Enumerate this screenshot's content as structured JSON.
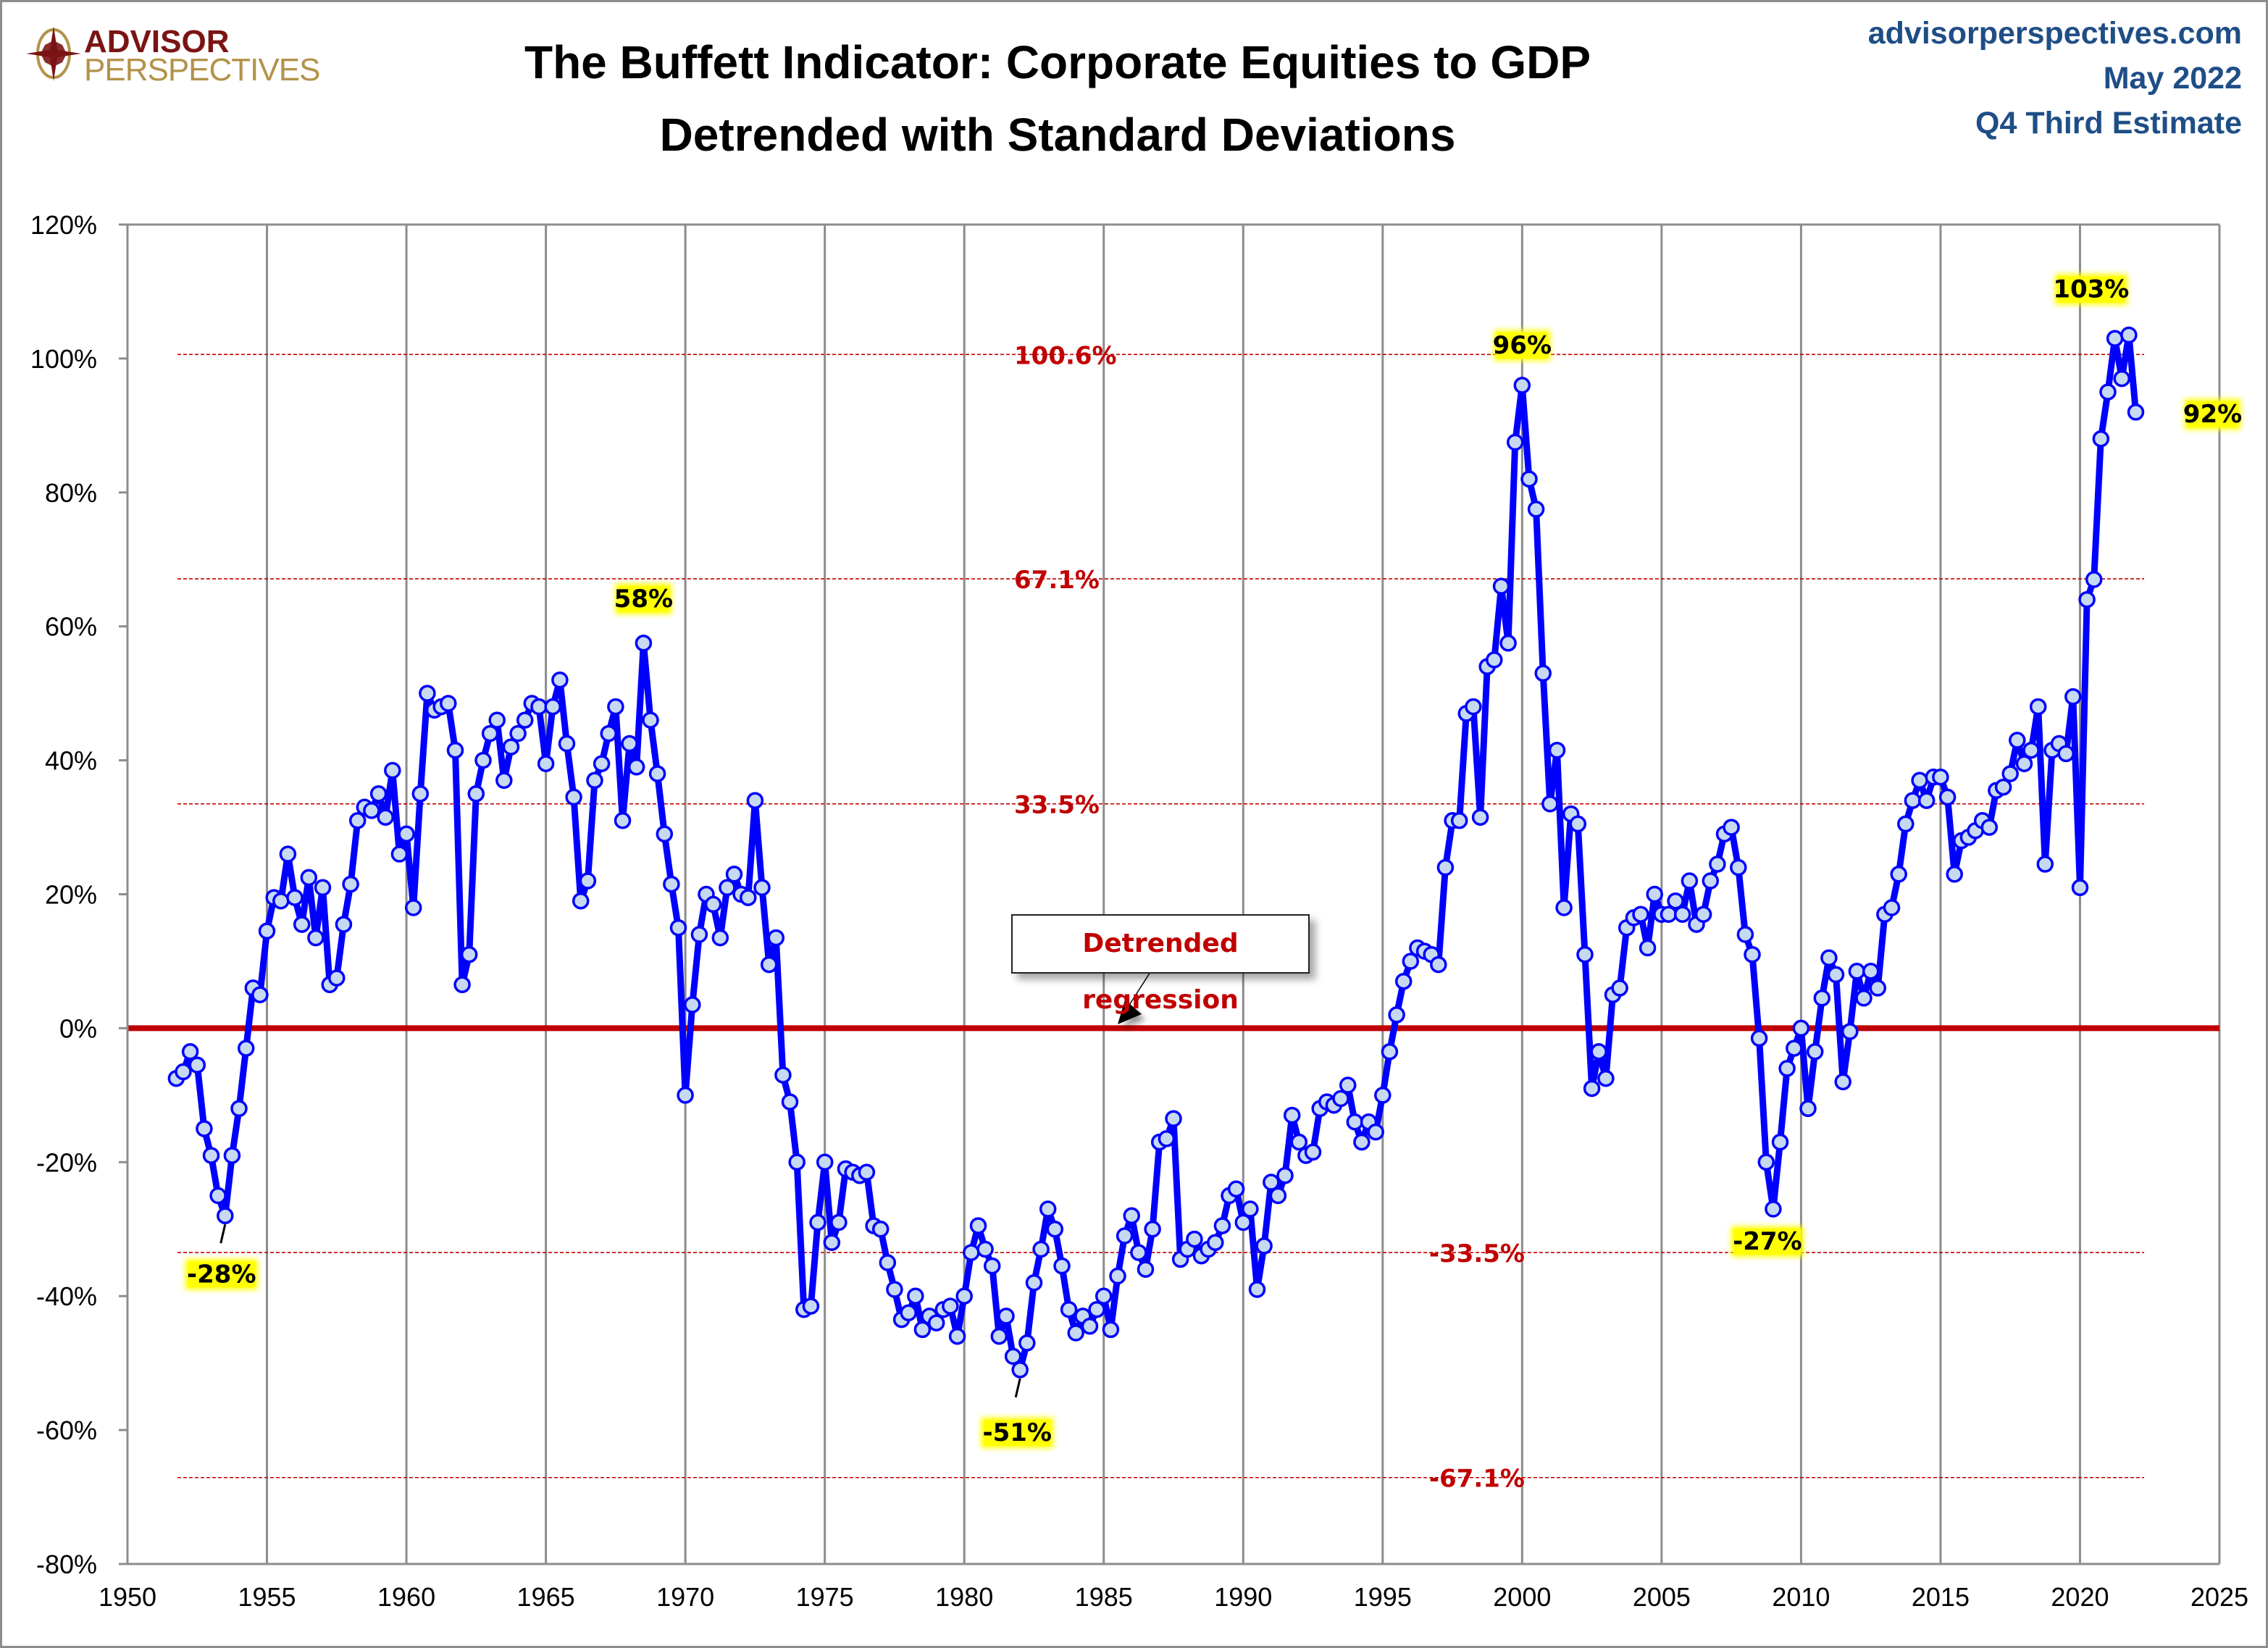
{
  "header": {
    "logo_top": "ADVISOR",
    "logo_bottom": "PERSPECTIVES",
    "title_line1": "The Buffett Indicator: Corporate Equities to GDP",
    "title_line2": "Detrended with Standard Deviations",
    "site": "advisorperspectives.com",
    "date": "May 2022",
    "estimate": "Q4 Third Estimate"
  },
  "colors": {
    "series_line": "#0000ff",
    "marker_fill": "#c6d9f1",
    "regression_line": "#c00000",
    "sd_line": "#c00000",
    "annotation_highlight": "#ffff00",
    "brand_dark": "#7a1414",
    "brand_gold": "#b3924a",
    "meta_text": "#1f4e86",
    "gridline": "#8c8c8c"
  },
  "callout": {
    "label": "Detrended regression"
  },
  "chart_data": {
    "type": "line",
    "title": "The Buffett Indicator: Corporate Equities to GDP — Detrended with Standard Deviations",
    "xlabel": "",
    "ylabel": "",
    "xlim": [
      1950,
      2025
    ],
    "ylim": [
      -80,
      120
    ],
    "x_ticks": [
      1950,
      1955,
      1960,
      1965,
      1970,
      1975,
      1980,
      1985,
      1990,
      1995,
      2000,
      2005,
      2010,
      2015,
      2020,
      2025
    ],
    "x_tick_labels": [
      "1950",
      "1955",
      "1960",
      "1965",
      "1970",
      "1975",
      "1980",
      "1985",
      "1990",
      "1995",
      "2000",
      "2005",
      "2010",
      "2015",
      "2020",
      "2025"
    ],
    "y_ticks": [
      120,
      100,
      80,
      60,
      40,
      20,
      0,
      -20,
      -40,
      -60,
      -80
    ],
    "y_tick_labels": [
      "120%",
      "100%",
      "80%",
      "60%",
      "40%",
      "20%",
      "0%",
      "-20%",
      "-40%",
      "-60%",
      "-80%"
    ],
    "grid": "vertical gridlines at x ticks",
    "legend": "none",
    "reference_lines": [
      {
        "name": "Detrended regression",
        "value": 0,
        "style": "solid"
      },
      {
        "name": "+1 SD",
        "value": 33.5,
        "label": "33.5%",
        "style": "dashed"
      },
      {
        "name": "+2 SD",
        "value": 67.1,
        "label": "67.1%",
        "style": "dashed"
      },
      {
        "name": "+3 SD",
        "value": 100.6,
        "label": "100.6%",
        "style": "dashed"
      },
      {
        "name": "-1 SD",
        "value": -33.5,
        "label": "-33.5%",
        "style": "dashed"
      },
      {
        "name": "-2 SD",
        "value": -67.1,
        "label": "-67.1%",
        "style": "dashed"
      }
    ],
    "annotations": [
      {
        "label": "-28%",
        "x": 1953.5,
        "y": -28
      },
      {
        "label": "58%",
        "x": 1968.5,
        "y": 57.5
      },
      {
        "label": "-51%",
        "x": 1982.0,
        "y": -51
      },
      {
        "label": "96%",
        "x": 2000.0,
        "y": 96
      },
      {
        "label": "-27%",
        "x": 2009.0,
        "y": -27
      },
      {
        "label": "103%",
        "x": 2021.75,
        "y": 103.5
      },
      {
        "label": "92%",
        "x": 2022.0,
        "y": 92
      }
    ],
    "series": [
      {
        "name": "Corporate Equities to GDP (detrended)",
        "x_start": 1951.75,
        "x_step": 0.25,
        "values": [
          -7.5,
          -6.5,
          -3.5,
          -5.5,
          -15,
          -19,
          -25,
          -28,
          -19,
          -12,
          -3,
          6,
          5,
          14.5,
          19.5,
          19,
          26,
          19.5,
          15.5,
          22.5,
          13.5,
          21,
          6.5,
          7.5,
          15.5,
          21.5,
          31,
          33,
          32.5,
          35,
          31.5,
          38.5,
          26,
          29,
          18,
          35,
          50,
          47.5,
          48,
          48.5,
          41.5,
          6.5,
          11,
          35,
          40,
          44,
          46,
          37,
          42,
          44,
          46,
          48.5,
          48,
          39.5,
          48,
          52,
          42.5,
          34.5,
          19,
          22,
          37,
          39.5,
          44,
          48,
          31,
          42.5,
          39,
          57.5,
          46,
          38,
          29,
          21.5,
          15,
          -10,
          3.5,
          14,
          20,
          18.5,
          13.5,
          21,
          23,
          20,
          19.5,
          34,
          21,
          9.5,
          13.5,
          -7,
          -11,
          -20,
          -42,
          -41.5,
          -29,
          -20,
          -32,
          -29,
          -21,
          -21.5,
          -22,
          -21.5,
          -29.5,
          -30,
          -35,
          -39,
          -43.5,
          -42.5,
          -40,
          -45,
          -43,
          -44,
          -42,
          -41.5,
          -46,
          -40,
          -33.5,
          -29.5,
          -33,
          -35.5,
          -46,
          -43,
          -49,
          -51,
          -47,
          -38,
          -33,
          -27,
          -30,
          -35.5,
          -42,
          -45.5,
          -43,
          -44.5,
          -42,
          -40,
          -45,
          -37,
          -31,
          -28,
          -33.5,
          -36,
          -30,
          -17,
          -16.5,
          -13.5,
          -34.5,
          -33,
          -31.5,
          -34,
          -33,
          -32,
          -29.5,
          -25,
          -24,
          -29,
          -27,
          -39,
          -32.5,
          -23,
          -25,
          -22,
          -13,
          -17,
          -19,
          -18.5,
          -12,
          -11,
          -11.5,
          -10.5,
          -8.5,
          -14,
          -17,
          -14,
          -15.5,
          -10,
          -3.5,
          2,
          7,
          10,
          12,
          11.5,
          11,
          9.5,
          24,
          31,
          31,
          47,
          48,
          31.5,
          54,
          55,
          66,
          57.5,
          87.5,
          96,
          82,
          77.5,
          53,
          33.5,
          41.5,
          18,
          32,
          30.5,
          11,
          -9,
          -3.5,
          -7.5,
          5,
          6,
          15,
          16.5,
          17,
          12,
          20,
          17,
          17,
          19,
          17,
          22,
          15.5,
          17,
          22,
          24.5,
          29,
          30,
          24,
          14,
          11,
          -1.5,
          -20,
          -27,
          -17,
          -6,
          -3,
          0,
          -12,
          -3.5,
          4.5,
          10.5,
          8,
          -8,
          -0.5,
          8.5,
          4.5,
          8.5,
          6,
          17,
          18,
          23,
          30.5,
          34,
          37,
          34,
          37.5,
          37.5,
          34.5,
          23,
          28,
          28.5,
          29.5,
          31,
          30,
          35.5,
          36,
          38,
          43,
          39.5,
          41.5,
          48,
          24.5,
          41.5,
          42.5,
          41,
          49.5,
          21,
          64,
          67,
          88,
          95,
          103,
          97,
          103.5,
          92
        ]
      }
    ]
  }
}
